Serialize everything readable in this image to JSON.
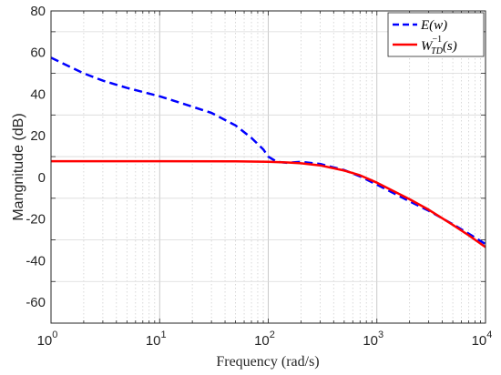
{
  "chart_data": {
    "type": "line",
    "xscale": "log",
    "xlim": [
      1,
      10000
    ],
    "ylim": [
      -70,
      80
    ],
    "xlabel": "Frequency  (rad/s)",
    "ylabel": "Mangnitude (dB)",
    "xticks": [
      1,
      10,
      100,
      1000,
      10000
    ],
    "yticks": [
      -60,
      -40,
      -20,
      0,
      20,
      40,
      60,
      80
    ],
    "ytick_labels": [
      "-60",
      "-40",
      "-20",
      "0",
      "20",
      "40",
      "60",
      "80"
    ],
    "grid": "major and minor (dotted)",
    "legend_position": "top-right",
    "series": [
      {
        "name": "E(w)",
        "style": "dashed",
        "color": "#0000FF",
        "x": [
          1,
          2,
          3,
          5,
          10,
          20,
          30,
          50,
          70,
          90,
          100,
          120,
          150,
          200,
          300,
          500,
          700,
          1000,
          2000,
          3000,
          5000,
          7000,
          10000
        ],
        "y": [
          57.5,
          50,
          46.5,
          43,
          39,
          34,
          31,
          25,
          19,
          13.5,
          10,
          7.5,
          7,
          7.5,
          6.5,
          3.5,
          0.5,
          -3.5,
          -11.5,
          -16,
          -22.5,
          -27,
          -32
        ]
      },
      {
        "name": "W_TD^-1(s)",
        "style": "solid",
        "color": "#FF0000",
        "x": [
          1,
          10,
          50,
          100,
          150,
          200,
          300,
          500,
          700,
          1000,
          2000,
          3000,
          5000,
          7000,
          10000
        ],
        "y": [
          7.8,
          7.8,
          7.7,
          7.5,
          7.2,
          6.8,
          5.8,
          3.3,
          1.0,
          -2.5,
          -10.5,
          -15.5,
          -22.8,
          -27.8,
          -33.5
        ]
      }
    ],
    "legend": [
      {
        "label": "E(w)"
      },
      {
        "label": "W",
        "sub": "TD",
        "sup": "−1",
        "arg": "(s)"
      }
    ]
  }
}
